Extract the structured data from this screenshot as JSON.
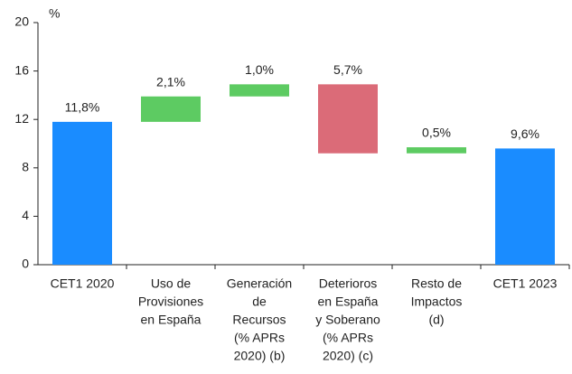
{
  "chart_data": {
    "type": "waterfall",
    "y_label": "%",
    "categories": [
      [
        "CET1 2020"
      ],
      [
        "Uso de",
        "Provisiones",
        "en España"
      ],
      [
        "Generación",
        "de",
        "Recursos",
        "(% APRs",
        "2020) (b)"
      ],
      [
        "Deterioros",
        "en España",
        "y Soberano",
        "(% APRs",
        "2020) (c)"
      ],
      [
        "Resto de",
        "Impactos",
        "(d)"
      ],
      [
        "CET1 2023"
      ]
    ],
    "values": [
      11.8,
      2.1,
      1.0,
      -5.7,
      0.5,
      9.6
    ],
    "value_labels": [
      "11,8%",
      "2,1%",
      "1,0%",
      "5,7%",
      "0,5%",
      "9,6%"
    ],
    "measure": [
      "absolute",
      "relative",
      "relative",
      "relative",
      "relative",
      "absolute"
    ],
    "colors": [
      "#1a8cff",
      "#5dcb62",
      "#5dcb62",
      "#db6b78",
      "#5dcb62",
      "#1a8cff"
    ],
    "ylim": [
      0,
      20
    ],
    "yticks": [
      0,
      4,
      8,
      12,
      16,
      20
    ],
    "grid": false
  }
}
